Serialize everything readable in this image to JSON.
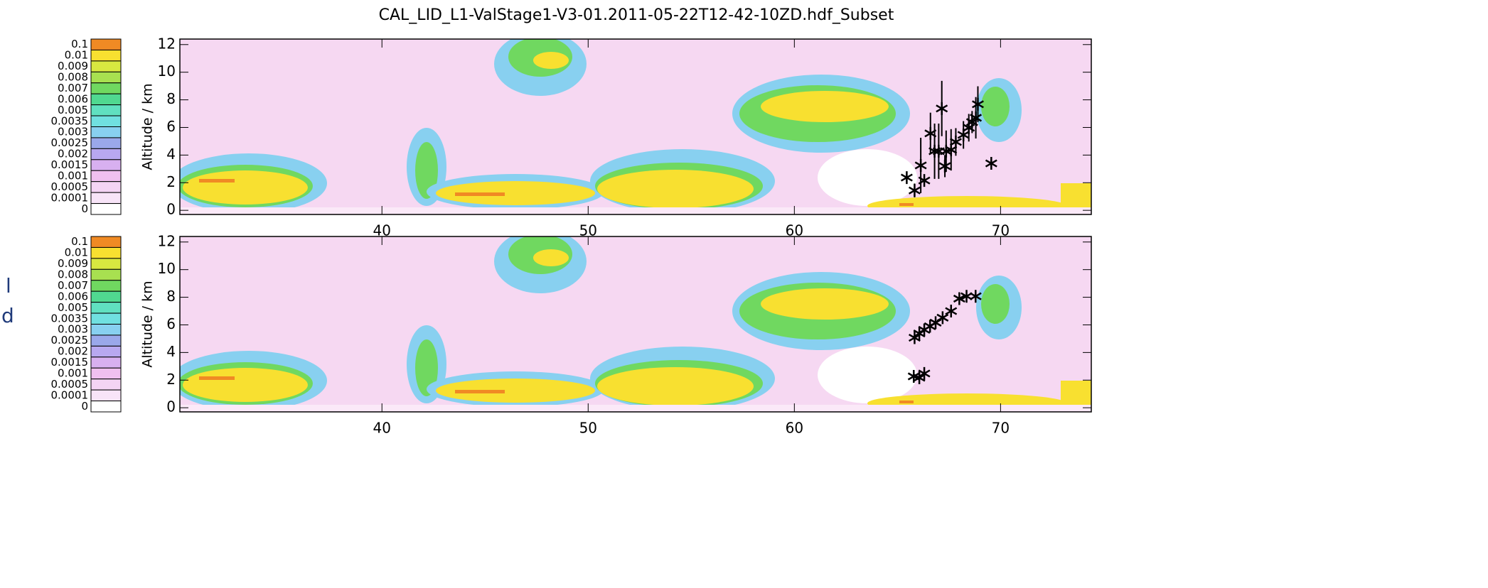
{
  "title": "CAL_LID_L1-ValStage1-V3-01.2011-05-22T12-42-10ZD.hdf_Subset",
  "side_text": [
    "l",
    "d"
  ],
  "colorbar": {
    "labels": [
      0.1,
      0.01,
      0.009,
      0.008,
      0.007,
      0.006,
      0.005,
      0.0035,
      0.003,
      0.0025,
      0.002,
      0.0015,
      0.001,
      0.0005,
      0.0001,
      0
    ],
    "colors": [
      "#f08a24",
      "#f8e030",
      "#d8e840",
      "#a8e050",
      "#70d860",
      "#50d890",
      "#60e0c0",
      "#70e0e0",
      "#88d0f0",
      "#9aa8ea",
      "#b8a8f0",
      "#d8b0f0",
      "#f0c0f0",
      "#f4d4f4",
      "#f8e4f8",
      "#ffffff"
    ]
  },
  "chart_data": [
    {
      "type": "scatter",
      "ylabel": "Altitude / km",
      "color": "#000000",
      "xlim": [
        30.2,
        74.4
      ],
      "ylim": [
        -0.3,
        12.4
      ],
      "xticks": [
        40,
        50,
        60,
        70
      ],
      "yticks": [
        0,
        2,
        4,
        6,
        8,
        10,
        12
      ],
      "x": [
        65.45,
        65.83,
        66.13,
        66.3,
        66.6,
        66.8,
        67.0,
        67.15,
        67.3,
        67.36,
        67.6,
        67.83,
        68.2,
        68.46,
        68.62,
        68.8,
        68.9,
        69.55
      ],
      "values": [
        2.37,
        1.44,
        3.25,
        2.16,
        5.57,
        4.28,
        4.28,
        7.37,
        3.2,
        4.28,
        4.38,
        4.95,
        5.46,
        5.98,
        6.39,
        6.7,
        7.68,
        3.4
      ],
      "errors": [
        0.3,
        0.5,
        2,
        0.3,
        1.5,
        2,
        2,
        2,
        0.8,
        1.5,
        1.5,
        1,
        1,
        1,
        0.8,
        1.5,
        1.3,
        0.3
      ]
    },
    {
      "type": "scatter",
      "ylabel": "Altitude / km",
      "color": "#000000",
      "xlim": [
        30.2,
        74.4
      ],
      "ylim": [
        -0.3,
        12.4
      ],
      "xticks": [
        40,
        50,
        60,
        70
      ],
      "yticks": [
        0,
        2,
        4,
        6,
        8,
        10,
        12
      ],
      "x": [
        65.79,
        66.06,
        66.3,
        65.83,
        66.06,
        66.3,
        66.58,
        66.85,
        67.19,
        67.6,
        68.0,
        68.35,
        68.79
      ],
      "values": [
        2.27,
        2.17,
        2.48,
        5.07,
        5.38,
        5.64,
        5.9,
        6.16,
        6.52,
        7.0,
        7.9,
        8.07,
        8.07
      ]
    }
  ]
}
